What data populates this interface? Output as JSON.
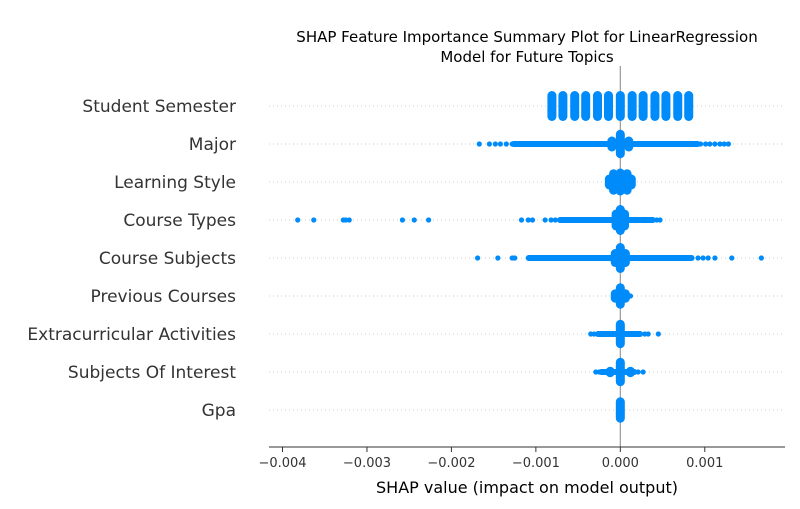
{
  "chart_data": {
    "type": "scatter",
    "title_lines": [
      "SHAP Feature Importance Summary Plot for LinearRegression",
      "Model for Future Topics"
    ],
    "xlabel": "SHAP value (impact on model output)",
    "xlim": [
      -0.00416,
      0.00195
    ],
    "x_ticks": [
      -0.004,
      -0.003,
      -0.002,
      -0.001,
      0.0,
      0.001
    ],
    "x_tick_labels": [
      "−0.004",
      "−0.003",
      "−0.002",
      "−0.001",
      "0.000",
      "0.001"
    ],
    "zero_line": 0.0,
    "point_color": "#008bfb",
    "categories": [
      "Student Semester",
      "Major",
      "Learning Style",
      "Course Types",
      "Course Subjects",
      "Previous Courses",
      "Extracurricular Activities",
      "Subjects Of Interest",
      "Gpa"
    ],
    "series": [
      {
        "feature": "Student Semester",
        "points": [
          -0.00081,
          -0.00068,
          -0.00054,
          -0.00041,
          -0.00027,
          -0.00014,
          0.0,
          0.00014,
          0.00027,
          0.00041,
          0.00054,
          0.00068,
          0.00081
        ],
        "spread": [
          0.0,
          0.0,
          0.0,
          0.0,
          0.0,
          0.0,
          0.0,
          0.0,
          0.0,
          0.0,
          0.0,
          0.0,
          0.0
        ],
        "clusters": [
          {
            "x": -0.00081,
            "h": 1.0
          },
          {
            "x": -0.00068,
            "h": 1.0
          },
          {
            "x": -0.00054,
            "h": 1.0
          },
          {
            "x": -0.00041,
            "h": 1.0
          },
          {
            "x": -0.00027,
            "h": 1.0
          },
          {
            "x": -0.00014,
            "h": 1.0
          },
          {
            "x": 0.0,
            "h": 1.0
          },
          {
            "x": 0.00014,
            "h": 1.0
          },
          {
            "x": 0.00027,
            "h": 1.0
          },
          {
            "x": 0.00041,
            "h": 1.0
          },
          {
            "x": 0.00054,
            "h": 1.0
          },
          {
            "x": 0.00068,
            "h": 1.0
          },
          {
            "x": 0.00081,
            "h": 1.0
          }
        ],
        "band": null
      },
      {
        "feature": "Major",
        "points": [
          -0.00167,
          -0.00155,
          -0.00148,
          -0.00142,
          -0.00135,
          -0.00128,
          0.00095,
          0.00101,
          0.00106,
          0.00112,
          0.00118,
          0.00123,
          0.00128
        ],
        "clusters": [
          {
            "x": 0.0,
            "h": 0.95
          },
          {
            "x": -0.0001,
            "h": 0.5
          },
          {
            "x": 0.0001,
            "h": 0.5
          }
        ],
        "band": [
          -0.0013,
          0.00095
        ]
      },
      {
        "feature": "Learning Style",
        "points": [],
        "clusters": [
          {
            "x": -8e-05,
            "h": 0.85
          },
          {
            "x": 0.0,
            "h": 0.9
          },
          {
            "x": 8e-05,
            "h": 0.85
          },
          {
            "x": -0.00013,
            "h": 0.5
          },
          {
            "x": 0.00013,
            "h": 0.5
          }
        ],
        "band": null
      },
      {
        "feature": "Course Types",
        "points": [
          -0.00382,
          -0.00363,
          -0.00328,
          -0.00325,
          -0.00321,
          -0.00258,
          -0.00244,
          -0.00227,
          -0.00117,
          -0.00109,
          -0.00104,
          -0.00089,
          -0.00082,
          -0.00077,
          0.00043,
          0.00047
        ],
        "clusters": [
          {
            "x": 0.0,
            "h": 1.0
          },
          {
            "x": -5e-05,
            "h": 0.7
          },
          {
            "x": 5e-05,
            "h": 0.7
          }
        ],
        "band": [
          -0.00075,
          0.00042
        ]
      },
      {
        "feature": "Course Subjects",
        "points": [
          -0.00169,
          -0.00145,
          -0.00128,
          -0.00125,
          0.00092,
          0.00098,
          0.00104,
          0.00112,
          0.00132,
          0.00167
        ],
        "clusters": [
          {
            "x": 0.0,
            "h": 1.0
          },
          {
            "x": -6e-05,
            "h": 0.6
          },
          {
            "x": 6e-05,
            "h": 0.6
          }
        ],
        "band": [
          -0.00112,
          0.00088
        ]
      },
      {
        "feature": "Previous Courses",
        "points": [
          -8e-05,
          8e-05,
          0.00012
        ],
        "clusters": [
          {
            "x": 0.0,
            "h": 0.85
          },
          {
            "x": -6e-05,
            "h": 0.45
          },
          {
            "x": 6e-05,
            "h": 0.45
          }
        ],
        "band": null
      },
      {
        "feature": "Extracurricular Activities",
        "points": [
          -0.00035,
          -0.00031,
          0.00029,
          0.00033,
          0.00045
        ],
        "clusters": [
          {
            "x": 0.0,
            "h": 0.95
          }
        ],
        "band": [
          -0.0003,
          0.00027
        ]
      },
      {
        "feature": "Subjects Of Interest",
        "points": [
          -0.00029,
          -0.00025,
          0.00021,
          0.00027
        ],
        "clusters": [
          {
            "x": 0.0,
            "h": 0.95
          },
          {
            "x": -0.00012,
            "h": 0.35
          },
          {
            "x": 0.00012,
            "h": 0.35
          }
        ],
        "band": [
          -0.00026,
          0.0002
        ]
      },
      {
        "feature": "Gpa",
        "points": [],
        "clusters": [
          {
            "x": 0.0,
            "h": 0.85
          }
        ],
        "band": null
      }
    ]
  }
}
